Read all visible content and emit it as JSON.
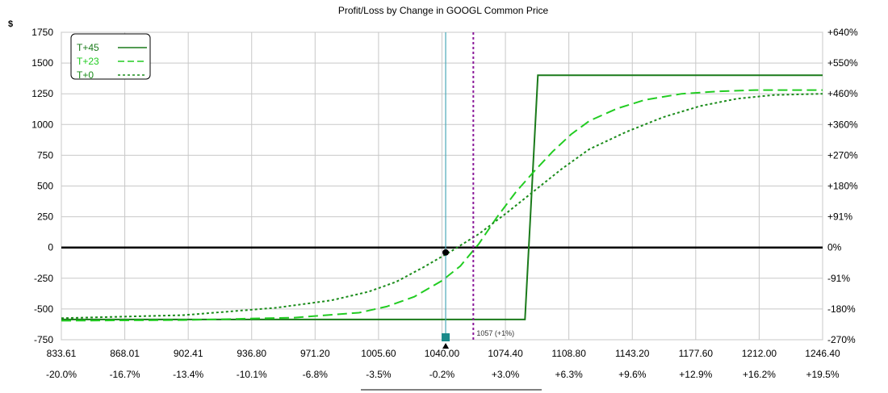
{
  "chart_data": {
    "type": "line",
    "title": "Profit/Loss by Change in GOOGL Common Price",
    "ylabel": "$",
    "xlim": [
      833.61,
      1246.4
    ],
    "ylim": [
      -750,
      1750
    ],
    "y_ticks": [
      -750,
      -500,
      -250,
      0,
      250,
      500,
      750,
      1000,
      1250,
      1500,
      1750
    ],
    "y_tick_labels": [
      "-750",
      "-500",
      "-250",
      "0",
      "250",
      "500",
      "750",
      "1000",
      "1250",
      "1500",
      "1750"
    ],
    "y2_tick_labels": [
      "-270%",
      "-180%",
      "-91%",
      "0%",
      "+91%",
      "+180%",
      "+270%",
      "+360%",
      "+460%",
      "+550%",
      "+640%"
    ],
    "x_ticks": [
      833.61,
      868.01,
      902.41,
      936.8,
      971.2,
      1005.6,
      1040.0,
      1074.4,
      1108.8,
      1143.2,
      1177.6,
      1212.0,
      1246.4
    ],
    "x_tick_labels": [
      "833.61",
      "868.01",
      "902.41",
      "936.80",
      "971.20",
      "1005.60",
      "1040.00",
      "1074.40",
      "1108.80",
      "1143.20",
      "1177.60",
      "1212.00",
      "1246.40"
    ],
    "x2_tick_labels": [
      "-20.0%",
      "-16.7%",
      "-13.4%",
      "-10.1%",
      "-6.8%",
      "-3.5%",
      "-0.2%",
      "+3.0%",
      "+6.3%",
      "+9.6%",
      "+12.9%",
      "+16.2%",
      "+19.5%"
    ],
    "grid": true,
    "legend": "top-left",
    "current_price": 1042.0,
    "reference_price": 1057,
    "reference_label": "1057 (+1%)",
    "current_marker": {
      "x": 1042.0,
      "y": -40
    },
    "series": [
      {
        "name": "T+45",
        "style": "solid",
        "color": "#1a7a1a",
        "x": [
          833.61,
          1063,
          1085,
          1092,
          1246.4
        ],
        "values": [
          -585,
          -585,
          -585,
          1400,
          1400
        ]
      },
      {
        "name": "T+23",
        "style": "long-dash",
        "color": "#22cc22",
        "x": [
          833.61,
          900,
          960,
          995,
          1010,
          1025,
          1040,
          1050,
          1060,
          1070,
          1080,
          1090,
          1100,
          1110,
          1120,
          1135,
          1150,
          1170,
          1190,
          1210,
          1246.4
        ],
        "values": [
          -595,
          -590,
          -570,
          -530,
          -480,
          -400,
          -270,
          -150,
          30,
          250,
          450,
          620,
          780,
          920,
          1030,
          1130,
          1200,
          1250,
          1270,
          1280,
          1280
        ]
      },
      {
        "name": "T+0",
        "style": "dotted",
        "color": "#1a8c1a",
        "x": [
          833.61,
          900,
          950,
          980,
          1000,
          1015,
          1030,
          1045,
          1060,
          1075,
          1090,
          1105,
          1120,
          1140,
          1160,
          1180,
          1200,
          1220,
          1246.4
        ],
        "values": [
          -575,
          -550,
          -490,
          -430,
          -360,
          -280,
          -160,
          -30,
          110,
          280,
          460,
          640,
          800,
          940,
          1060,
          1150,
          1210,
          1240,
          1250
        ]
      }
    ]
  }
}
